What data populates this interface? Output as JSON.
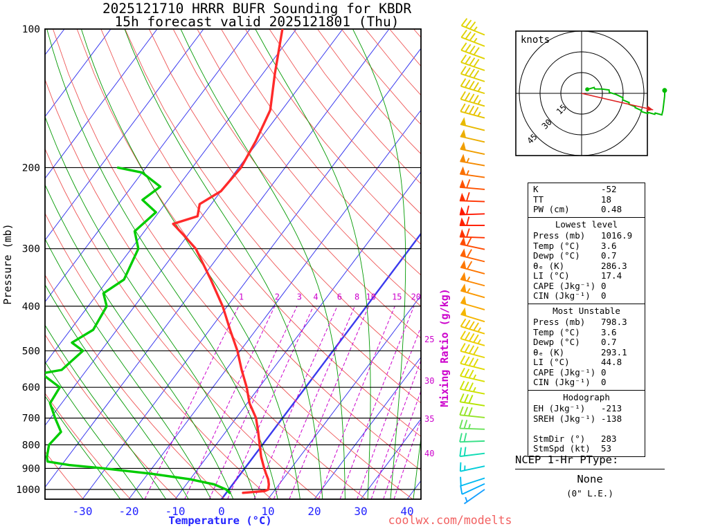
{
  "title": {
    "line1": "2025121710 HRRR BUFR Sounding for KBDR",
    "line2": "15h forecast valid 2025121801 (Thu)"
  },
  "watermark": "coolwx.com/modelts",
  "axes": {
    "pressure_label": "Pressure (mb)",
    "temperature_label": "Temperature (°C)",
    "mixing_ratio_label": "Mixing Ratio (g/kg)",
    "pressure_ticks": [
      100,
      200,
      300,
      400,
      500,
      600,
      700,
      800,
      900,
      1000
    ],
    "temperature_ticks": [
      -30,
      -20,
      -10,
      0,
      10,
      20,
      30,
      40
    ]
  },
  "hodograph": {
    "units_label": "knots",
    "ring_labels": [
      "15",
      "30",
      "45"
    ],
    "rings_kt": [
      15,
      30,
      45
    ]
  },
  "stats": {
    "indices": [
      [
        "K",
        "-52"
      ],
      [
        "TT",
        "18"
      ],
      [
        "PW (cm)",
        "0.48"
      ]
    ],
    "sections": [
      {
        "header": "Lowest level",
        "rows": [
          [
            "Press (mb)",
            "1016.9"
          ],
          [
            "Temp (°C)",
            "3.6"
          ],
          [
            "Dewp (°C)",
            "0.7"
          ],
          [
            "θₑ (K)",
            "286.3"
          ],
          [
            "LI (°C)",
            "17.4"
          ],
          [
            "CAPE (Jkg⁻¹)",
            "0"
          ],
          [
            "CIN (Jkg⁻¹)",
            "0"
          ]
        ]
      },
      {
        "header": "Most Unstable",
        "rows": [
          [
            "Press (mb)",
            "798.3"
          ],
          [
            "Temp (°C)",
            "3.6"
          ],
          [
            "Dewp (°C)",
            "0.7"
          ],
          [
            "θₑ (K)",
            "293.1"
          ],
          [
            "LI (°C)",
            "44.8"
          ],
          [
            "CAPE (Jkg⁻¹)",
            "0"
          ],
          [
            "CIN (Jkg⁻¹)",
            "0"
          ]
        ]
      },
      {
        "header": "Hodograph",
        "rows": [
          [
            "EH (Jkg⁻¹)",
            "-213"
          ],
          [
            "SREH (Jkg⁻¹)",
            "-138"
          ],
          [
            "",
            ""
          ],
          [
            "StmDir (°)",
            "283"
          ],
          [
            "StmSpd (kt)",
            "53"
          ]
        ]
      }
    ]
  },
  "ptype": {
    "title": "NCEP 1-Hr PType:",
    "value": "None",
    "note": "(0\" L.E.)"
  },
  "colors": {
    "isotherm": "#3a3aee",
    "dry_adiabat": "#ee5555",
    "moist_adiabat": "#009900",
    "mixing_ratio": "#cc00cc",
    "pressure_line": "#000000",
    "temperature_curve": "#ff2a2a",
    "dewpoint_curve": "#00cc00",
    "axis_text_blue": "#2222ff",
    "watermark": "#f26060",
    "hodograph_trace": "#00bb00",
    "storm_arrow": "#dd2222"
  },
  "chart_data": {
    "type": "skewt_log_p_sounding",
    "pressure_axis_mb": {
      "min": 100,
      "max": 1050,
      "scale": "log"
    },
    "isotherms_c": {
      "start": -110,
      "end": 40,
      "step": 10,
      "highlight": 0
    },
    "dry_adiabats_theta_k": {
      "start": 240,
      "end": 460,
      "step": 10
    },
    "moist_adiabats_t1000_c": {
      "start": -25,
      "end": 40,
      "step": 5
    },
    "mixing_ratio_gkg": [
      1,
      2,
      3,
      4,
      6,
      8,
      10,
      15,
      20,
      25,
      30,
      35,
      40
    ],
    "mixing_ratio_inline_labels": [
      1,
      2,
      3,
      4,
      6,
      8,
      10,
      15,
      20
    ],
    "mixing_ratio_edge_labels": [
      [
        25,
        495
      ],
      [
        30,
        555
      ],
      [
        35,
        610
      ],
      [
        40,
        660
      ]
    ],
    "temperature_profile": [
      [
        1017,
        3.6
      ],
      [
        1008,
        8.0
      ],
      [
        1000,
        8.5
      ],
      [
        975,
        7.8
      ],
      [
        950,
        6.8
      ],
      [
        925,
        5.5
      ],
      [
        900,
        4.2
      ],
      [
        850,
        1.7
      ],
      [
        800,
        -0.6
      ],
      [
        750,
        -3.0
      ],
      [
        700,
        -5.7
      ],
      [
        650,
        -9.5
      ],
      [
        600,
        -12.7
      ],
      [
        550,
        -16.6
      ],
      [
        500,
        -20.6
      ],
      [
        450,
        -25.6
      ],
      [
        400,
        -31.0
      ],
      [
        350,
        -37.9
      ],
      [
        300,
        -46.1
      ],
      [
        280,
        -51.0
      ],
      [
        265,
        -55.0
      ],
      [
        255,
        -51.0
      ],
      [
        240,
        -52.5
      ],
      [
        225,
        -50.0
      ],
      [
        200,
        -49.5
      ],
      [
        175,
        -50.6
      ],
      [
        150,
        -52.5
      ],
      [
        125,
        -57.4
      ],
      [
        100,
        -63.0
      ]
    ],
    "dewpoint_profile": [
      [
        1017,
        0.7
      ],
      [
        1000,
        -0.6
      ],
      [
        975,
        -4.0
      ],
      [
        950,
        -10.1
      ],
      [
        925,
        -19.1
      ],
      [
        900,
        -30.4
      ],
      [
        885,
        -38.4
      ],
      [
        870,
        -43.6
      ],
      [
        850,
        -44.5
      ],
      [
        800,
        -46.0
      ],
      [
        750,
        -45.5
      ],
      [
        700,
        -49.0
      ],
      [
        650,
        -52.5
      ],
      [
        600,
        -53.0
      ],
      [
        560,
        -59.2
      ],
      [
        550,
        -55.4
      ],
      [
        500,
        -53.9
      ],
      [
        480,
        -57.6
      ],
      [
        450,
        -55.1
      ],
      [
        400,
        -56.0
      ],
      [
        375,
        -58.8
      ],
      [
        350,
        -56.6
      ],
      [
        300,
        -58.5
      ],
      [
        275,
        -62.1
      ],
      [
        250,
        -60.6
      ],
      [
        235,
        -65.5
      ],
      [
        220,
        -63.8
      ],
      [
        205,
        -70.0
      ],
      [
        200,
        -76.0
      ]
    ],
    "wind_profile": [
      [
        1000,
        5,
        235,
        "#18a0ff"
      ],
      [
        972,
        10,
        245,
        "#00acfc"
      ],
      [
        945,
        10,
        252,
        "#00baf0"
      ],
      [
        890,
        15,
        258,
        "#00ccd8"
      ],
      [
        835,
        20,
        263,
        "#10dcb4"
      ],
      [
        785,
        20,
        268,
        "#38e088"
      ],
      [
        740,
        25,
        272,
        "#68e258"
      ],
      [
        698,
        30,
        276,
        "#94e428"
      ],
      [
        658,
        30,
        279,
        "#b4e400"
      ],
      [
        620,
        35,
        281,
        "#cce200"
      ],
      [
        583,
        35,
        283,
        "#d8de00"
      ],
      [
        549,
        40,
        284,
        "#e0da00"
      ],
      [
        517,
        40,
        285,
        "#e6d400"
      ],
      [
        487,
        45,
        286,
        "#ecce00"
      ],
      [
        459,
        45,
        287,
        "#f0c400"
      ],
      [
        432,
        50,
        287,
        "#f4b600"
      ],
      [
        407,
        50,
        286,
        "#f8a800"
      ],
      [
        383,
        55,
        286,
        "#fa9800"
      ],
      [
        361,
        55,
        285,
        "#fc8800"
      ],
      [
        340,
        60,
        285,
        "#fe7600"
      ],
      [
        320,
        60,
        284,
        "#ff6200"
      ],
      [
        301,
        60,
        282,
        "#ff4c00"
      ],
      [
        284,
        60,
        272,
        "#ff3400"
      ],
      [
        267,
        60,
        270,
        "#ff2200"
      ],
      [
        252,
        60,
        268,
        "#ff1800"
      ],
      [
        237,
        60,
        272,
        "#ff3200"
      ],
      [
        223,
        60,
        275,
        "#ff5200"
      ],
      [
        210,
        55,
        278,
        "#fa7000"
      ],
      [
        198,
        55,
        280,
        "#f58a00"
      ],
      [
        187,
        50,
        282,
        "#f09e00"
      ],
      [
        176,
        50,
        283,
        "#ecae00"
      ],
      [
        166,
        50,
        284,
        "#e8ba00"
      ],
      [
        156,
        45,
        285,
        "#e6c200"
      ],
      [
        147,
        45,
        286,
        "#e4c800"
      ],
      [
        138,
        45,
        287,
        "#e2cc00"
      ],
      [
        130,
        40,
        288,
        "#e0ce00"
      ],
      [
        123,
        40,
        289,
        "#e0d000"
      ],
      [
        116,
        40,
        290,
        "#e0d200"
      ],
      [
        109,
        35,
        291,
        "#e0d300"
      ],
      [
        103,
        35,
        292,
        "#e0d400"
      ]
    ],
    "hodograph_trace_min_pressure_mb": 250,
    "storm_motion": {
      "dir_deg": 283,
      "speed_kt": 53
    }
  }
}
